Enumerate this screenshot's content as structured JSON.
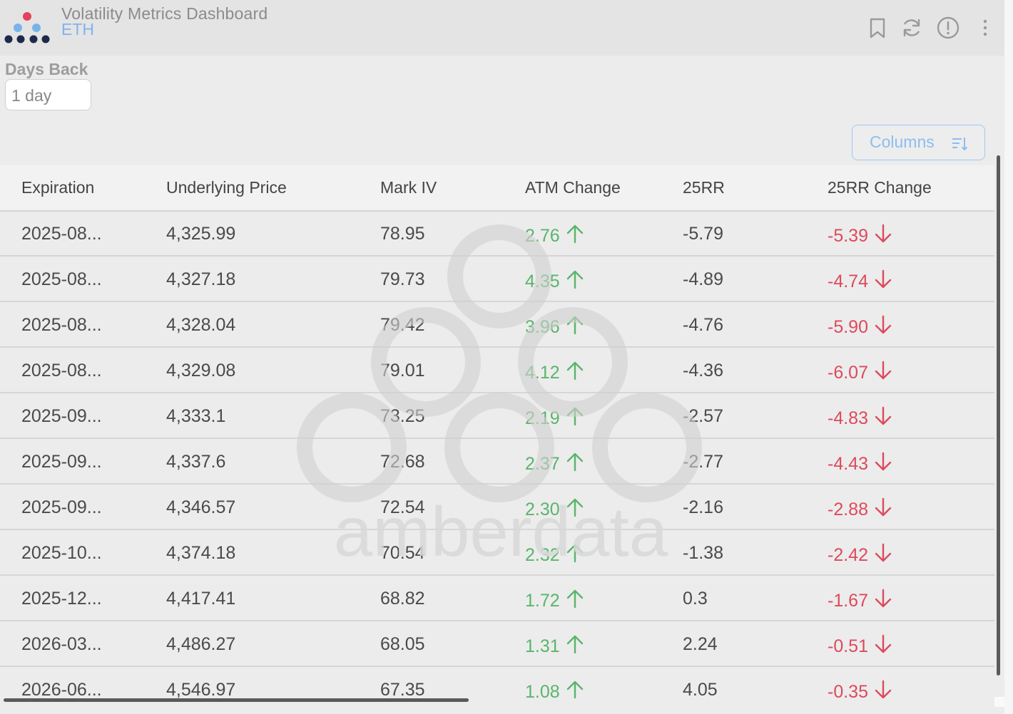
{
  "header": {
    "title": "Volatility Metrics Dashboard",
    "subtitle": "ETH",
    "icons": [
      "bookmark-icon",
      "refresh-icon",
      "info-icon",
      "more-vertical-icon"
    ]
  },
  "filters": {
    "days_back_label": "Days Back",
    "days_back_value": "1 day"
  },
  "toolbar": {
    "columns_label": "Columns",
    "columns_icon": "sort-list-icon"
  },
  "watermark": {
    "text": "amberdata"
  },
  "colors": {
    "positive": "#5ab56b",
    "negative": "#dd4a5c",
    "accent": "#7fb4ec"
  },
  "table": {
    "columns": [
      "Expiration",
      "Underlying Price",
      "Mark IV",
      "ATM Change",
      "25RR",
      "25RR Change"
    ],
    "rows": [
      {
        "expiration": "2025-08...",
        "underlying_price": "4,325.99",
        "mark_iv": "78.95",
        "atm_change": "2.76",
        "rr25": "-5.79",
        "rr25_change": "-5.39"
      },
      {
        "expiration": "2025-08...",
        "underlying_price": "4,327.18",
        "mark_iv": "79.73",
        "atm_change": "4.35",
        "rr25": "-4.89",
        "rr25_change": "-4.74"
      },
      {
        "expiration": "2025-08...",
        "underlying_price": "4,328.04",
        "mark_iv": "79.42",
        "atm_change": "3.96",
        "rr25": "-4.76",
        "rr25_change": "-5.90"
      },
      {
        "expiration": "2025-08...",
        "underlying_price": "4,329.08",
        "mark_iv": "79.01",
        "atm_change": "4.12",
        "rr25": "-4.36",
        "rr25_change": "-6.07"
      },
      {
        "expiration": "2025-09...",
        "underlying_price": "4,333.1",
        "mark_iv": "73.25",
        "atm_change": "2.19",
        "rr25": "-2.57",
        "rr25_change": "-4.83"
      },
      {
        "expiration": "2025-09...",
        "underlying_price": "4,337.6",
        "mark_iv": "72.68",
        "atm_change": "2.37",
        "rr25": "-2.77",
        "rr25_change": "-4.43"
      },
      {
        "expiration": "2025-09...",
        "underlying_price": "4,346.57",
        "mark_iv": "72.54",
        "atm_change": "2.30",
        "rr25": "-2.16",
        "rr25_change": "-2.88"
      },
      {
        "expiration": "2025-10...",
        "underlying_price": "4,374.18",
        "mark_iv": "70.54",
        "atm_change": "2.32",
        "rr25": "-1.38",
        "rr25_change": "-2.42"
      },
      {
        "expiration": "2025-12...",
        "underlying_price": "4,417.41",
        "mark_iv": "68.82",
        "atm_change": "1.72",
        "rr25": "0.3",
        "rr25_change": "-1.67"
      },
      {
        "expiration": "2026-03...",
        "underlying_price": "4,486.27",
        "mark_iv": "68.05",
        "atm_change": "1.31",
        "rr25": "2.24",
        "rr25_change": "-0.51"
      },
      {
        "expiration": "2026-06...",
        "underlying_price": "4,546.97",
        "mark_iv": "67.35",
        "atm_change": "1.08",
        "rr25": "4.05",
        "rr25_change": "-0.35"
      }
    ]
  }
}
